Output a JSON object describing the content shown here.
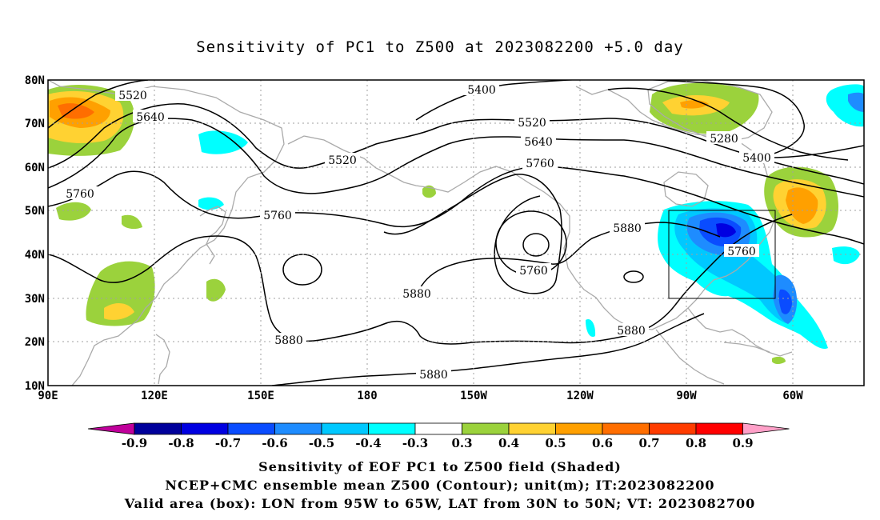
{
  "title": "Sensitivity of PC1 to Z500 at 2023082200 +5.0 day",
  "map": {
    "lat_labels": [
      "80N",
      "70N",
      "60N",
      "50N",
      "40N",
      "30N",
      "20N",
      "10N"
    ],
    "lon_labels": [
      "90E",
      "120E",
      "150E",
      "180",
      "150W",
      "120W",
      "90W",
      "60W"
    ],
    "contour_labels": [
      "5400",
      "5520",
      "5640",
      "5520",
      "5760",
      "5520",
      "5640",
      "5760",
      "5280",
      "5400",
      "5760",
      "5880",
      "5760",
      "5760",
      "5880",
      "5880",
      "5880",
      "5880"
    ],
    "valid_box": {
      "lon_min": "95W",
      "lon_max": "65W",
      "lat_min": "30N",
      "lat_max": "50N"
    }
  },
  "colorbar": {
    "labels": [
      "-0.9",
      "-0.8",
      "-0.7",
      "-0.6",
      "-0.5",
      "-0.4",
      "-0.3",
      "0.3",
      "0.4",
      "0.5",
      "0.6",
      "0.7",
      "0.8",
      "0.9"
    ],
    "colors": [
      "#00009b",
      "#0000e1",
      "#0a4cff",
      "#1e8cff",
      "#00c8ff",
      "#00ffff",
      "#ffffff",
      "#9bd23c",
      "#ffd232",
      "#ffa000",
      "#ff6e00",
      "#ff3c00",
      "#ff0000"
    ],
    "left_tip_color": "#c0009b",
    "right_tip_color": "#ffa0c8"
  },
  "footer": {
    "line1": "Sensitivity of EOF PC1 to Z500 field (Shaded)",
    "line2": "NCEP+CMC ensemble mean Z500 (Contour); unit(m); IT:2023082200",
    "line3": "Valid area (box): LON from 95W to 65W, LAT from 30N to 50N; VT: 2023082700"
  }
}
